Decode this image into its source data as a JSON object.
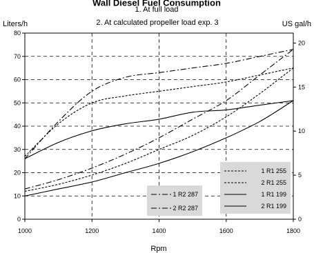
{
  "chart_data": {
    "type": "line",
    "title": "Wall Diesel Fuel Consumption",
    "subtitle_1": "1. At full load",
    "subtitle_2": "2. At calculated propeller load exp. 3",
    "xlabel": "Rpm",
    "ylabel_left": "Liters/h",
    "ylabel_right": "US gal/h",
    "xlim": [
      1000,
      1800
    ],
    "ylim_left": [
      0,
      80
    ],
    "ylim_right": [
      0,
      21.13
    ],
    "xticks": [
      "1000",
      "1200",
      "1400",
      "1600",
      "1800"
    ],
    "yticks_left": [
      "0",
      "10",
      "20",
      "30",
      "40",
      "50",
      "60",
      "70",
      "80"
    ],
    "yticks_right": [
      "0",
      "5",
      "10",
      "15",
      "20"
    ],
    "grid": true,
    "legend_boxes": [
      {
        "position": "bottom-center",
        "entries": [
          "1 R2 287",
          "2 R2 287"
        ]
      },
      {
        "position": "bottom-right",
        "entries": [
          "1 R1 255",
          "2 R1 255",
          "1 R1 199",
          "2 R1 199"
        ]
      }
    ],
    "series": [
      {
        "name": "1 R2 287",
        "style": "dash-dot",
        "x": [
          1000,
          1100,
          1200,
          1300,
          1400,
          1500,
          1600,
          1700,
          1800
        ],
        "values": [
          26,
          42,
          55,
          61,
          63,
          65,
          67,
          70,
          73
        ]
      },
      {
        "name": "2 R2 287",
        "style": "dash-dot",
        "x": [
          1000,
          1100,
          1200,
          1300,
          1400,
          1500,
          1600,
          1700,
          1800
        ],
        "values": [
          13,
          17,
          22,
          28,
          35,
          43,
          51,
          62,
          73
        ]
      },
      {
        "name": "1 R1 255",
        "style": "dashed",
        "x": [
          1000,
          1100,
          1200,
          1300,
          1400,
          1500,
          1600,
          1700,
          1800
        ],
        "values": [
          27,
          41,
          50,
          53,
          55,
          57,
          59,
          62,
          65
        ]
      },
      {
        "name": "2 R1 255",
        "style": "dashed",
        "x": [
          1000,
          1100,
          1200,
          1300,
          1400,
          1500,
          1600,
          1700,
          1800
        ],
        "values": [
          12,
          15,
          19,
          24,
          30,
          36,
          44,
          54,
          65
        ]
      },
      {
        "name": "1 R1 199",
        "style": "solid",
        "x": [
          1000,
          1100,
          1200,
          1300,
          1400,
          1500,
          1600,
          1700,
          1800
        ],
        "values": [
          26,
          33,
          38,
          41,
          43,
          46,
          47,
          49,
          51
        ]
      },
      {
        "name": "2 R1 199",
        "style": "solid",
        "x": [
          1000,
          1100,
          1200,
          1300,
          1400,
          1500,
          1600,
          1700,
          1800
        ],
        "values": [
          10,
          13,
          16,
          20,
          24,
          29,
          35,
          42,
          51
        ]
      }
    ]
  }
}
